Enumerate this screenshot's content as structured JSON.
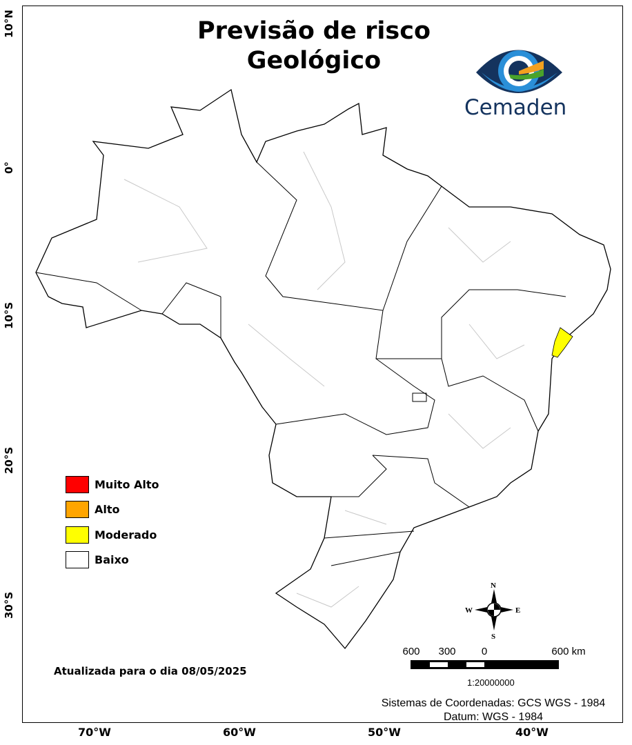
{
  "title_line1": "Previsão de risco",
  "title_line2": "Geológico",
  "logo": {
    "text": "Cemaden",
    "colors": [
      "#14335e",
      "#2a8fd8",
      "#f2a01f",
      "#4aa32a"
    ]
  },
  "longitude_labels": [
    "70°W",
    "60°W",
    "50°W",
    "40°W"
  ],
  "latitude_labels": [
    "10°N",
    "0°",
    "10°S",
    "20°S",
    "30°S"
  ],
  "legend": [
    {
      "label": "Muito Alto",
      "color": "#ff0000"
    },
    {
      "label": "Alto",
      "color": "#ffa500"
    },
    {
      "label": "Moderado",
      "color": "#ffff00"
    },
    {
      "label": "Baixo",
      "color": "#ffffff"
    }
  ],
  "updated": "Atualizada para o dia 08/05/2025",
  "compass": {
    "n": "N",
    "s": "S",
    "e": "E",
    "w": "W"
  },
  "scale": {
    "labels": [
      "600",
      "300",
      "0",
      "600 km"
    ],
    "ratio": "1:20000000"
  },
  "crs_line1": "Sistemas de Coordenadas: GCS WGS - 1984",
  "crs_line2": "Datum: WGS - 1984",
  "highlighted_region": {
    "risk": "Moderado",
    "color": "#ffff00"
  }
}
